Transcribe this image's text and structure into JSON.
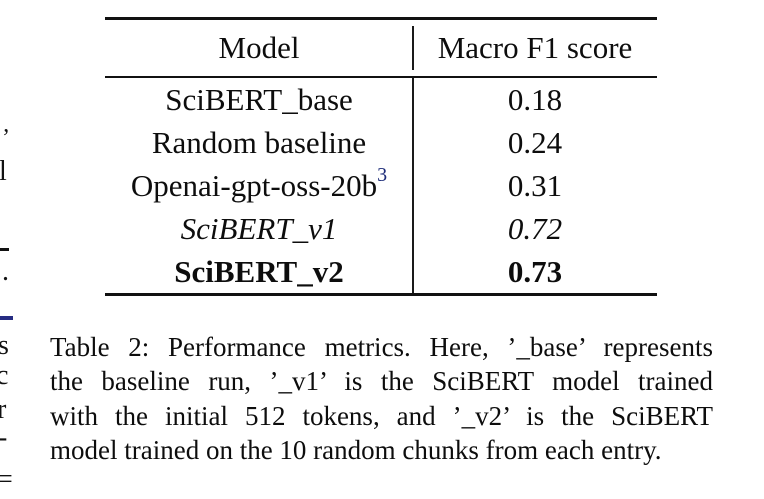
{
  "table": {
    "columns": [
      "Model",
      "Macro F1 score"
    ],
    "rows": [
      {
        "model": "SciBERT_base",
        "score": "0.18",
        "emphasis": "normal"
      },
      {
        "model": "Random baseline",
        "score": "0.24",
        "emphasis": "normal"
      },
      {
        "model": "Openai-gpt-oss-20b",
        "superscript": "3",
        "score": "0.31",
        "emphasis": "normal"
      },
      {
        "model": "SciBERT_v1",
        "score": "0.72",
        "emphasis": "italic"
      },
      {
        "model": "SciBERT_v2",
        "score": "0.73",
        "emphasis": "bold"
      }
    ]
  },
  "caption": {
    "line1": "Table 2: Performance metrics. Here, ’_base’ represents",
    "line2": "the baseline run, ’_v1’ is the SciBERT model trained",
    "line3": "with the initial 512 tokens, and ’_v2’ is the SciBERT",
    "line4": "model trained on the 10 random chunks from each entry.",
    "full_text": "Table 2: Performance metrics. Here, ’_base’ represents the baseline run, ’_v1’ is the SciBERT model trained with the initial 512 tokens, and ’_v2’ is the SciBERT model trained on the 10 random chunks from each entry."
  },
  "colors": {
    "text": "#0d0d0d",
    "footnote_link": "#1c2b78",
    "edge_link_fragment": "#262c82"
  },
  "edge_fragments": {
    "quote": "’",
    "l": "l",
    "dot": ".",
    "s": "s",
    "c": "c",
    "r": "r",
    "hyphen": "-",
    "equals": "="
  }
}
